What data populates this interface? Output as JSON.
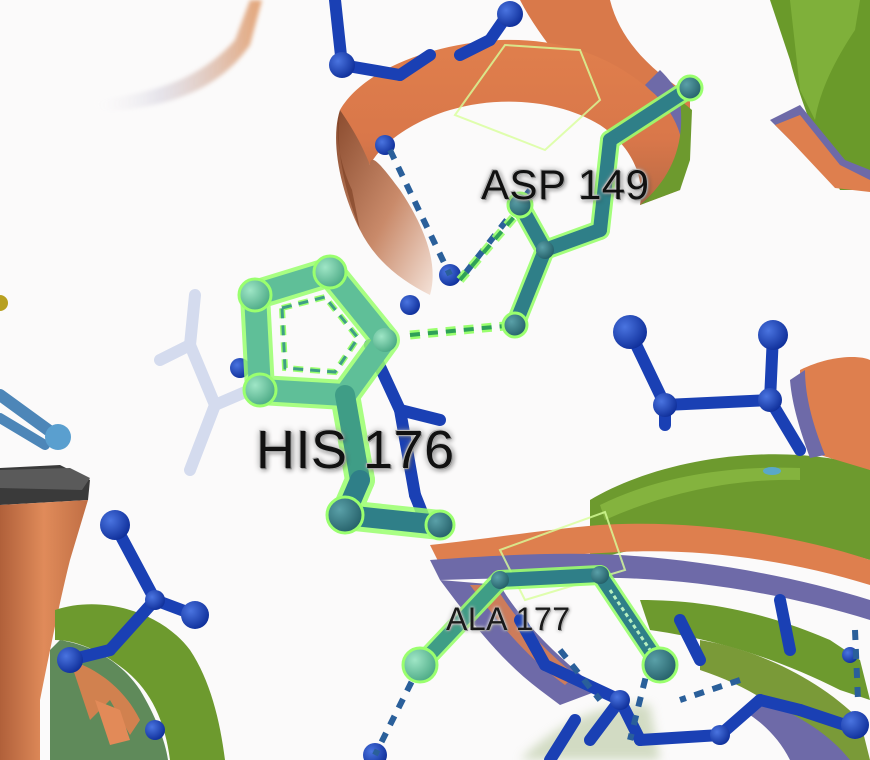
{
  "viewer": {
    "background_color": "#fbfafa"
  },
  "labels": {
    "asp": "ASP 149",
    "his": "HIS 176",
    "ala": "ALA 177"
  },
  "colors": {
    "ribbon_orange": "#de7f4e",
    "ribbon_green": "#6d9a2e",
    "ribbon_purple": "#6e6aa8",
    "stick_blue": "#1a40b4",
    "highlight_teal": "#5fbf98",
    "highlight_dark_teal": "#2f7f88",
    "highlight_outline": "#9aff6e",
    "hbond_blue": "#2a5f9a"
  }
}
